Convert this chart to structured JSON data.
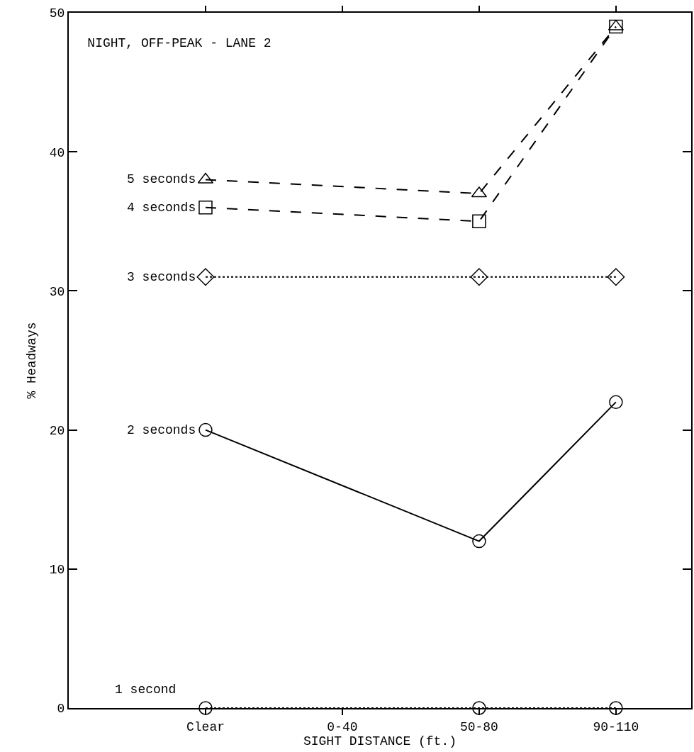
{
  "chart_data": {
    "type": "line",
    "title": "NIGHT, OFF-PEAK - LANE 2",
    "xlabel": "SIGHT DISTANCE (ft.)",
    "ylabel": "% Headways",
    "categories": [
      "Clear",
      "0-40",
      "50-80",
      "90-110"
    ],
    "series": [
      {
        "name": "5 seconds",
        "color": "#000000",
        "marker": "triangle",
        "line_style": "dashed",
        "values": [
          38,
          null,
          37,
          49
        ]
      },
      {
        "name": "4 seconds",
        "color": "#000000",
        "marker": "square",
        "line_style": "dashed",
        "values": [
          36,
          null,
          35,
          49
        ]
      },
      {
        "name": "3 seconds",
        "color": "#000000",
        "marker": "diamond",
        "line_style": "dotted",
        "values": [
          31,
          null,
          31,
          31
        ]
      },
      {
        "name": "2 seconds",
        "color": "#000000",
        "marker": "circle",
        "line_style": "solid",
        "values": [
          20,
          null,
          12,
          22
        ]
      },
      {
        "name": "1 second",
        "color": "#000000",
        "marker": "circle",
        "line_style": "dotted",
        "values": [
          0,
          null,
          0,
          0
        ]
      }
    ],
    "ylim": [
      0,
      50
    ],
    "yticks": [
      0,
      10,
      20,
      30,
      40,
      50
    ],
    "grid": false,
    "legend": false
  }
}
